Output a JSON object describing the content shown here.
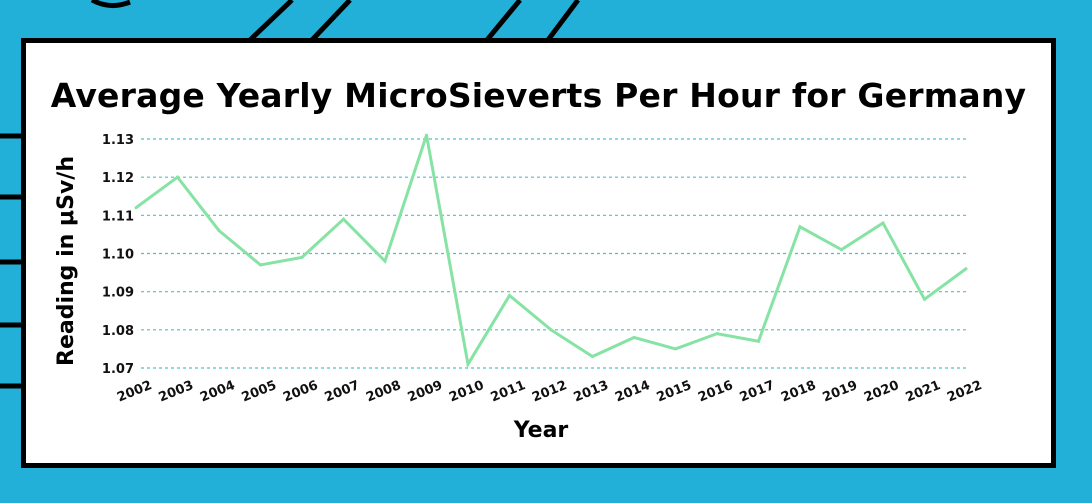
{
  "chart_data": {
    "type": "line",
    "title": "Average Yearly MicroSieverts Per Hour for Germany",
    "xlabel": "Year",
    "ylabel": "Reading in μSv/h",
    "x": [
      "2002",
      "2003",
      "2004",
      "2005",
      "2006",
      "2007",
      "2008",
      "2009",
      "2010",
      "2011",
      "2012",
      "2013",
      "2014",
      "2015",
      "2016",
      "2017",
      "2018",
      "2019",
      "2020",
      "2021",
      "2022"
    ],
    "series": [
      {
        "values": [
          1.112,
          1.12,
          1.106,
          1.097,
          1.099,
          1.109,
          1.098,
          1.131,
          1.071,
          1.089,
          1.08,
          1.073,
          1.078,
          1.075,
          1.079,
          1.077,
          1.107,
          1.101,
          1.108,
          1.088,
          1.096
        ]
      }
    ],
    "yticks": [
      "1.07",
      "1.08",
      "1.09",
      "1.10",
      "1.11",
      "1.12",
      "1.13"
    ],
    "ylim": [
      1.07,
      1.13
    ],
    "grid": true,
    "legend": "none",
    "colors": {
      "line": "#86e3a4",
      "grid": "#4cc0cc",
      "background": "#22b0d8",
      "card": "#ffffff",
      "frame": "#000000"
    }
  }
}
